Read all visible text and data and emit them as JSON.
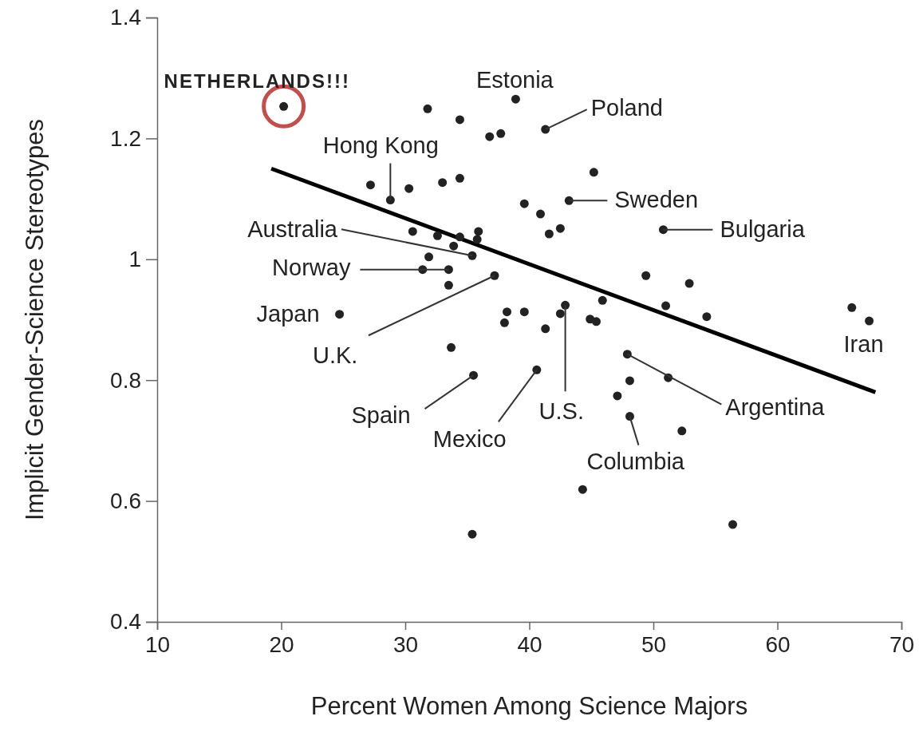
{
  "chart_data": {
    "type": "scatter",
    "xlabel": "Percent Women Among Science Majors",
    "ylabel": "Implicit Gender-Science Stereotypes",
    "xlim": [
      10,
      70
    ],
    "xticks": [
      10,
      20,
      30,
      40,
      50,
      60,
      70
    ],
    "ylim": [
      0.4,
      1.4
    ],
    "yticks": [
      0.4,
      0.6,
      0.8,
      1,
      1.2,
      1.4
    ],
    "grid": false,
    "series": [
      {
        "marker": "circle",
        "color": "#222222",
        "x": [
          20.2,
          31.8,
          34.4,
          38.9,
          36.8,
          37.7,
          41.3,
          27.2,
          28.8,
          30.3,
          33.0,
          34.4,
          39.6,
          43.2,
          45.2,
          40.9,
          41.6,
          42.5,
          50.8,
          30.6,
          32.6,
          34.4,
          35.9,
          35.8,
          33.9,
          35.4,
          31.9,
          31.4,
          33.5,
          33.5,
          37.2,
          24.7,
          49.4,
          52.9,
          45.9,
          51.0,
          54.3,
          66.0,
          67.4,
          38.2,
          38.0,
          39.6,
          42.9,
          42.5,
          41.3,
          44.9,
          45.4,
          33.7,
          35.5,
          40.6,
          47.9,
          51.2,
          48.1,
          47.1,
          48.1,
          52.3,
          44.3,
          35.4,
          56.4
        ],
        "values": [
          1.253,
          1.249,
          1.231,
          1.265,
          1.203,
          1.208,
          1.215,
          1.123,
          1.098,
          1.117,
          1.127,
          1.134,
          1.092,
          1.097,
          1.144,
          1.075,
          1.042,
          1.051,
          1.049,
          1.046,
          1.039,
          1.037,
          1.046,
          1.033,
          1.022,
          1.006,
          1.004,
          0.983,
          0.983,
          0.957,
          0.973,
          0.909,
          0.973,
          0.96,
          0.932,
          0.923,
          0.905,
          0.92,
          0.898,
          0.913,
          0.895,
          0.913,
          0.924,
          0.91,
          0.885,
          0.901,
          0.897,
          0.854,
          0.808,
          0.817,
          0.843,
          0.804,
          0.799,
          0.774,
          0.74,
          0.716,
          0.619,
          0.545,
          0.561
        ]
      },
      {
        "type": "line",
        "color": "#000000",
        "x": [
          19.2,
          67.9
        ],
        "values": [
          1.15,
          0.78
        ]
      }
    ],
    "annotations": [
      {
        "text": "NETHERLANDS!!!",
        "x": 20.2,
        "y": 1.253
      },
      {
        "text": "Estonia",
        "x": 38.9,
        "y": 1.265
      },
      {
        "text": "Poland",
        "x": 41.3,
        "y": 1.215
      },
      {
        "text": "Hong Kong",
        "x": 28.8,
        "y": 1.098
      },
      {
        "text": "Sweden",
        "x": 43.2,
        "y": 1.097
      },
      {
        "text": "Bulgaria",
        "x": 50.8,
        "y": 1.049
      },
      {
        "text": "Australia",
        "x": 35.4,
        "y": 1.006
      },
      {
        "text": "Norway",
        "x": 33.5,
        "y": 0.983
      },
      {
        "text": "Japan",
        "x": 24.7,
        "y": 0.909
      },
      {
        "text": "U.K.",
        "x": 37.2,
        "y": 0.973
      },
      {
        "text": "Spain",
        "x": 35.5,
        "y": 0.808
      },
      {
        "text": "Mexico",
        "x": 40.6,
        "y": 0.817
      },
      {
        "text": "U.S.",
        "x": 42.9,
        "y": 0.924
      },
      {
        "text": "Columbia",
        "x": 48.1,
        "y": 0.74
      },
      {
        "text": "Argentina",
        "x": 47.9,
        "y": 0.843
      },
      {
        "text": "Iran",
        "x": 67.4,
        "y": 0.898
      }
    ]
  }
}
